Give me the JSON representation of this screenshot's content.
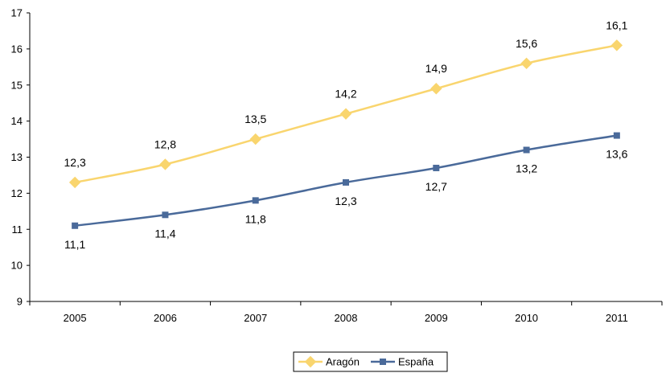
{
  "chart_data": {
    "type": "line",
    "categories": [
      "2005",
      "2006",
      "2007",
      "2008",
      "2009",
      "2010",
      "2011"
    ],
    "series": [
      {
        "name": "Aragón",
        "values": [
          12.3,
          12.8,
          13.5,
          14.2,
          14.9,
          15.6,
          16.1
        ],
        "labels": [
          "12,3",
          "12,8",
          "13,5",
          "14,2",
          "14,9",
          "15,6",
          "16,1"
        ],
        "color": "#F9D56E",
        "marker": "diamond",
        "label_position": "above"
      },
      {
        "name": "España",
        "values": [
          11.1,
          11.4,
          11.8,
          12.3,
          12.7,
          13.2,
          13.6
        ],
        "labels": [
          "11,1",
          "11,4",
          "11,8",
          "12,3",
          "12,7",
          "13,2",
          "13,6"
        ],
        "color": "#4A6A9A",
        "marker": "square",
        "label_position": "below"
      }
    ],
    "y_ticks": [
      "9",
      "10",
      "11",
      "12",
      "13",
      "14",
      "15",
      "16",
      "17"
    ],
    "ylim": [
      9,
      17
    ],
    "grid": false,
    "legend_position": "bottom-center"
  }
}
